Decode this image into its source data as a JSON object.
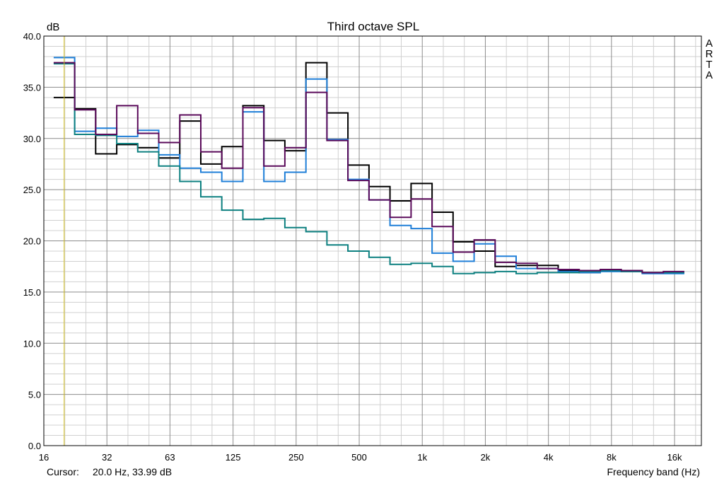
{
  "chart_data": {
    "type": "line",
    "title": "Third octave SPL",
    "ylabel": "dB",
    "xlabel": "Frequency band (Hz)",
    "watermark": [
      "A",
      "R",
      "T",
      "A"
    ],
    "cursor_label": "Cursor:",
    "cursor_value": "20.0 Hz, 33.99 dB",
    "cursor_freq": 20.0,
    "y_ticks": [
      "0.0",
      "5.0",
      "10.0",
      "15.0",
      "20.0",
      "25.0",
      "30.0",
      "35.0",
      "40.0"
    ],
    "x_tick_labels": [
      "16",
      "32",
      "63",
      "125",
      "250",
      "500",
      "1k",
      "2k",
      "4k",
      "8k",
      "16k"
    ],
    "ylim": [
      0,
      40
    ],
    "grid": true,
    "bands": [
      20,
      25,
      31.5,
      40,
      50,
      63,
      80,
      100,
      125,
      160,
      200,
      250,
      315,
      400,
      500,
      630,
      800,
      1000,
      1250,
      1600,
      2000,
      2500,
      3150,
      4000,
      5000,
      6300,
      8000,
      10000,
      12500,
      16000
    ],
    "series": [
      {
        "color": "#000000",
        "values": [
          34.0,
          32.9,
          28.5,
          29.4,
          29.1,
          28.1,
          31.7,
          27.5,
          29.2,
          33.2,
          29.8,
          28.8,
          37.4,
          32.5,
          27.4,
          25.3,
          23.9,
          25.6,
          22.8,
          19.9,
          19.0,
          17.5,
          17.6,
          17.6,
          17.1,
          16.9,
          17.1,
          17.0,
          16.9,
          16.9
        ]
      },
      {
        "color": "#1f7fd8",
        "values": [
          37.9,
          30.7,
          31.0,
          30.2,
          30.8,
          28.4,
          27.1,
          26.7,
          25.8,
          32.6,
          25.8,
          26.7,
          35.8,
          29.9,
          26.0,
          24.0,
          21.5,
          21.2,
          18.8,
          18.0,
          19.7,
          18.5,
          17.3,
          17.3,
          17.0,
          16.9,
          17.0,
          17.0,
          16.8,
          16.8
        ]
      },
      {
        "color": "#0d8080",
        "values": [
          37.3,
          30.4,
          30.3,
          29.5,
          28.7,
          27.3,
          25.8,
          24.3,
          23.0,
          22.1,
          22.2,
          21.3,
          20.9,
          19.6,
          19.0,
          18.4,
          17.7,
          17.8,
          17.5,
          16.8,
          16.9,
          17.0,
          16.8,
          16.9,
          16.9,
          17.0,
          17.1,
          17.0,
          16.9,
          16.9
        ]
      },
      {
        "color": "#5a0a5a",
        "values": [
          37.4,
          32.8,
          30.4,
          33.2,
          30.5,
          29.6,
          32.3,
          28.7,
          27.1,
          33.0,
          27.3,
          29.1,
          34.5,
          29.8,
          25.9,
          24.0,
          22.3,
          24.1,
          21.4,
          18.9,
          20.1,
          17.9,
          17.8,
          17.3,
          17.2,
          17.1,
          17.2,
          17.1,
          16.9,
          17.0
        ]
      }
    ]
  }
}
